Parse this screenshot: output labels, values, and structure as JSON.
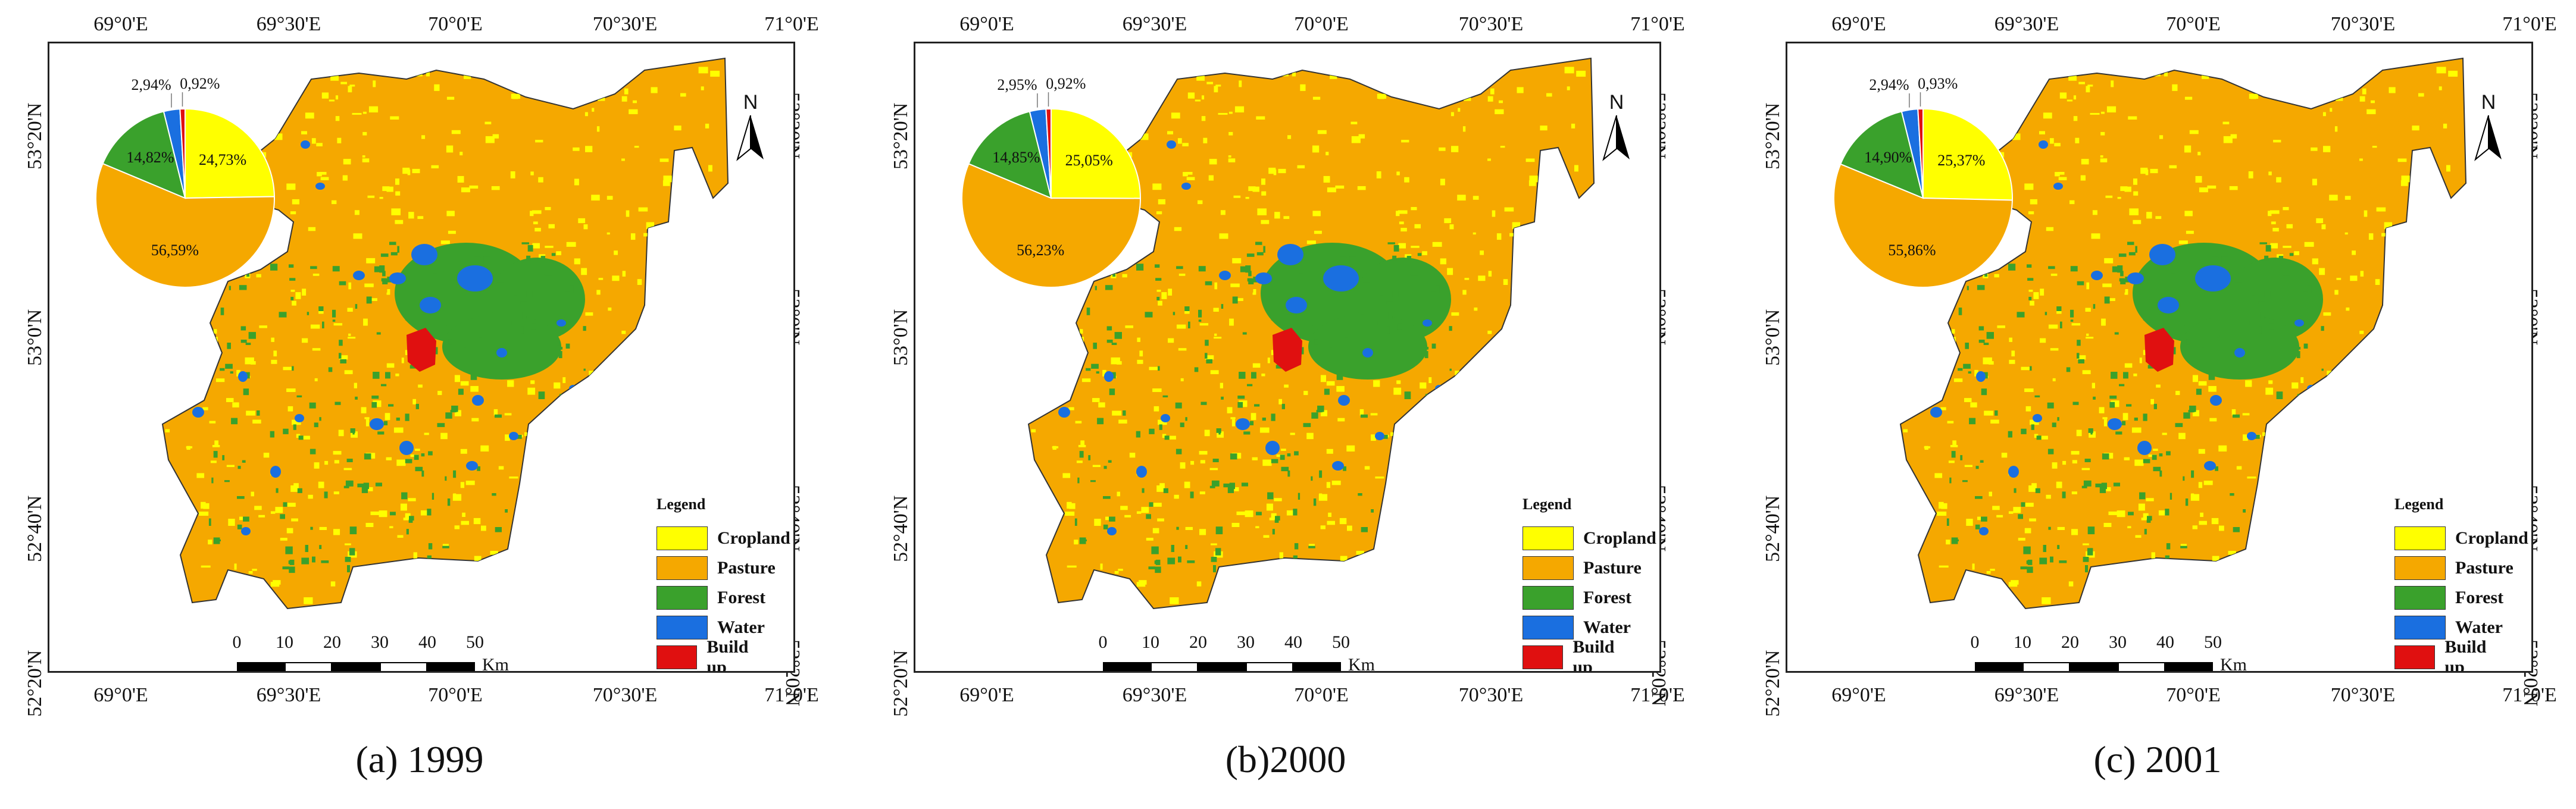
{
  "legend": {
    "title": "Legend",
    "classes": [
      {
        "label": "Cropland",
        "color": "#ffff00"
      },
      {
        "label": "Pasture",
        "color": "#f5a800"
      },
      {
        "label": "Forest",
        "color": "#3aa12c"
      },
      {
        "label": "Water",
        "color": "#1a6fe0"
      },
      {
        "label": "Build up",
        "color": "#e01010"
      }
    ]
  },
  "axes": {
    "lon_ticks": [
      "69°0'E",
      "69°30'E",
      "70°0'E",
      "70°30'E",
      "71°0'E"
    ],
    "lat_ticks": [
      "53°20'N",
      "53°0'N",
      "52°40'N",
      "52°20'N"
    ]
  },
  "scale_bar": {
    "labels": [
      "0",
      "10",
      "20",
      "30",
      "40",
      "50"
    ],
    "unit": "Km"
  },
  "north_label": "N",
  "chart_data": [
    {
      "type": "pie",
      "caption": "(a) 1999",
      "slices": [
        {
          "name": "Cropland",
          "value": 24.73,
          "label": "24,73%"
        },
        {
          "name": "Pasture",
          "value": 56.59,
          "label": "56,59%"
        },
        {
          "name": "Forest",
          "value": 14.82,
          "label": "14,82%"
        },
        {
          "name": "Water",
          "value": 2.94,
          "label": "2,94%"
        },
        {
          "name": "Build up",
          "value": 0.92,
          "label": "0,92%"
        }
      ]
    },
    {
      "type": "pie",
      "caption": "(b)2000",
      "slices": [
        {
          "name": "Cropland",
          "value": 25.05,
          "label": "25,05%"
        },
        {
          "name": "Pasture",
          "value": 56.23,
          "label": "56,23%"
        },
        {
          "name": "Forest",
          "value": 14.85,
          "label": "14,85%"
        },
        {
          "name": "Water",
          "value": 2.95,
          "label": "2,95%"
        },
        {
          "name": "Build up",
          "value": 0.92,
          "label": "0,92%"
        }
      ]
    },
    {
      "type": "pie",
      "caption": "(c) 2001",
      "slices": [
        {
          "name": "Cropland",
          "value": 25.37,
          "label": "25,37%"
        },
        {
          "name": "Pasture",
          "value": 55.86,
          "label": "55,86%"
        },
        {
          "name": "Forest",
          "value": 14.9,
          "label": "14,90%"
        },
        {
          "name": "Water",
          "value": 2.94,
          "label": "2,94%"
        },
        {
          "name": "Build up",
          "value": 0.93,
          "label": "0,93%"
        }
      ]
    }
  ]
}
